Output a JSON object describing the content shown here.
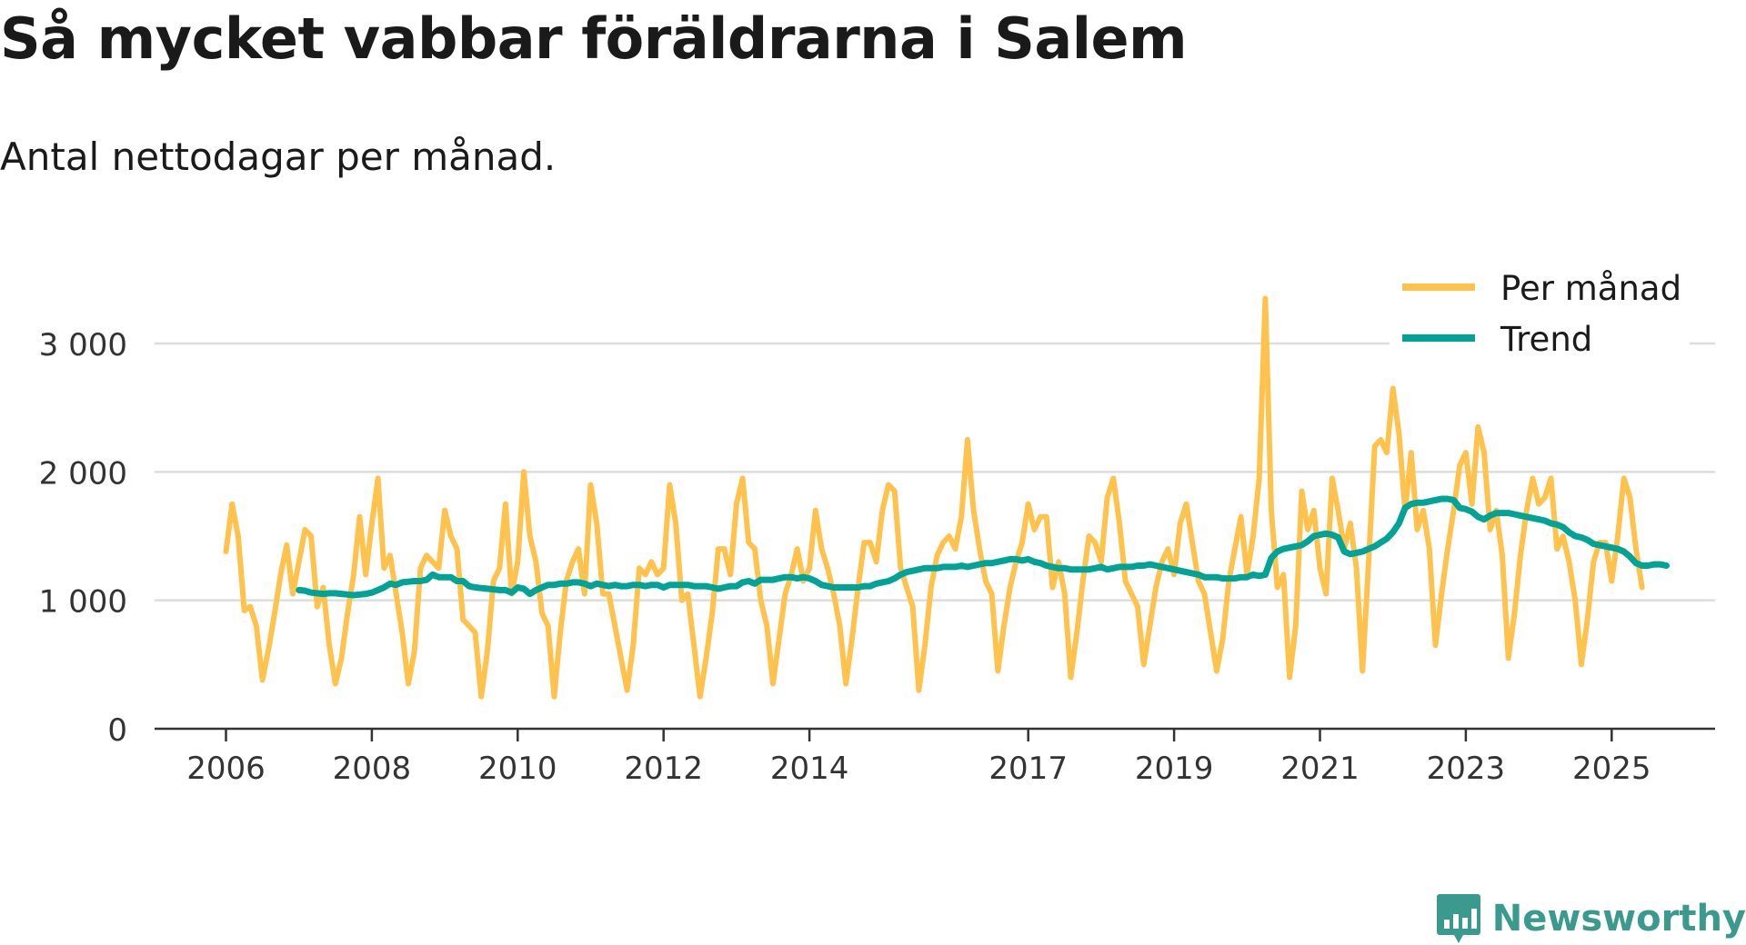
{
  "title": "Så mycket vabbar föräldrarna i Salem",
  "subtitle": "Antal nettodagar per månad.",
  "brand": {
    "name": "Newsworthy",
    "icon": "newsworthy-logo-icon"
  },
  "colors": {
    "monthly": "#FFC34D",
    "trend": "#00A396",
    "grid": "#DDDDDD",
    "axis": "#333333",
    "brand": "#3A9A8E"
  },
  "chart_data": {
    "type": "line",
    "title": "Så mycket vabbar föräldrarna i Salem",
    "subtitle": "Antal nettodagar per månad.",
    "xlabel": "",
    "ylabel": "",
    "ylim": [
      0,
      3000
    ],
    "y_ticks": [
      {
        "value": 0,
        "label": "0"
      },
      {
        "value": 1000,
        "label": "1 000"
      },
      {
        "value": 2000,
        "label": "2 000"
      },
      {
        "value": 3000,
        "label": "3 000"
      }
    ],
    "x_ticks": [
      "2006",
      "2008",
      "2010",
      "2012",
      "2014",
      "2017",
      "2019",
      "2021",
      "2023",
      "2025"
    ],
    "legend": {
      "position": "top-right",
      "items": [
        "Per månad",
        "Trend"
      ]
    },
    "series": [
      {
        "name": "Per månad",
        "color": "#FFC34D",
        "start_year": 2006,
        "values": [
          1380,
          1750,
          1500,
          920,
          950,
          800,
          380,
          620,
          900,
          1200,
          1430,
          1050,
          1300,
          1550,
          1500,
          950,
          1100,
          650,
          350,
          550,
          900,
          1200,
          1650,
          1200,
          1600,
          1950,
          1250,
          1350,
          1050,
          750,
          350,
          600,
          1250,
          1350,
          1300,
          1250,
          1700,
          1500,
          1400,
          850,
          800,
          750,
          250,
          600,
          1150,
          1250,
          1750,
          1050,
          1300,
          2000,
          1500,
          1300,
          900,
          800,
          250,
          750,
          1150,
          1300,
          1400,
          1050,
          1900,
          1600,
          1050,
          1050,
          800,
          550,
          300,
          650,
          1250,
          1200,
          1300,
          1200,
          1250,
          1900,
          1600,
          1000,
          1050,
          650,
          250,
          550,
          900,
          1400,
          1400,
          1200,
          1750,
          1950,
          1450,
          1400,
          1000,
          800,
          350,
          700,
          1050,
          1200,
          1400,
          1150,
          1250,
          1700,
          1400,
          1250,
          1050,
          800,
          350,
          700,
          1100,
          1450,
          1450,
          1300,
          1700,
          1900,
          1850,
          1250,
          1100,
          950,
          300,
          650,
          1100,
          1350,
          1450,
          1500,
          1400,
          1650,
          2250,
          1700,
          1400,
          1150,
          1050,
          450,
          800,
          1100,
          1300,
          1450,
          1750,
          1550,
          1650,
          1650,
          1100,
          1300,
          1050,
          400,
          750,
          1150,
          1500,
          1450,
          1300,
          1800,
          1950,
          1600,
          1150,
          1050,
          950,
          500,
          800,
          1100,
          1300,
          1400,
          1200,
          1600,
          1750,
          1450,
          1150,
          1050,
          750,
          450,
          700,
          1150,
          1400,
          1650,
          1200,
          1500,
          1950,
          3350,
          1700,
          1100,
          1200,
          400,
          800,
          1850,
          1550,
          1700,
          1250,
          1050,
          1950,
          1700,
          1400,
          1600,
          1250,
          450,
          1300,
          2200,
          2250,
          2150,
          2650,
          2300,
          1700,
          2150,
          1550,
          1700,
          1400,
          650,
          1050,
          1400,
          1700,
          2050,
          2150,
          1750,
          2350,
          2150,
          1550,
          1700,
          1350,
          550,
          900,
          1350,
          1700,
          1950,
          1750,
          1800,
          1950,
          1400,
          1500,
          1300,
          1000,
          500,
          850,
          1300,
          1450,
          1450,
          1150,
          1500,
          1950,
          1800,
          1400,
          1100
        ]
      },
      {
        "name": "Trend",
        "color": "#00A396",
        "start_year": 2007,
        "values": [
          1080,
          1075,
          1060,
          1055,
          1050,
          1055,
          1055,
          1050,
          1045,
          1040,
          1045,
          1050,
          1060,
          1080,
          1100,
          1130,
          1120,
          1140,
          1145,
          1150,
          1150,
          1160,
          1200,
          1180,
          1180,
          1180,
          1150,
          1150,
          1110,
          1100,
          1095,
          1090,
          1085,
          1080,
          1080,
          1060,
          1100,
          1090,
          1050,
          1080,
          1100,
          1120,
          1120,
          1130,
          1130,
          1140,
          1140,
          1130,
          1110,
          1130,
          1120,
          1110,
          1120,
          1110,
          1110,
          1120,
          1120,
          1110,
          1120,
          1120,
          1100,
          1120,
          1120,
          1120,
          1120,
          1110,
          1110,
          1110,
          1100,
          1090,
          1100,
          1110,
          1110,
          1140,
          1150,
          1130,
          1160,
          1160,
          1160,
          1170,
          1180,
          1180,
          1170,
          1180,
          1170,
          1150,
          1120,
          1110,
          1100,
          1100,
          1100,
          1100,
          1100,
          1110,
          1110,
          1130,
          1140,
          1150,
          1170,
          1200,
          1220,
          1230,
          1240,
          1250,
          1250,
          1250,
          1260,
          1260,
          1260,
          1270,
          1260,
          1270,
          1280,
          1290,
          1290,
          1300,
          1310,
          1320,
          1320,
          1310,
          1320,
          1300,
          1290,
          1270,
          1260,
          1250,
          1250,
          1240,
          1240,
          1240,
          1240,
          1250,
          1260,
          1240,
          1250,
          1260,
          1260,
          1260,
          1270,
          1270,
          1280,
          1270,
          1260,
          1250,
          1240,
          1230,
          1220,
          1210,
          1200,
          1180,
          1180,
          1180,
          1170,
          1170,
          1170,
          1180,
          1180,
          1200,
          1190,
          1200,
          1330,
          1380,
          1400,
          1410,
          1420,
          1430,
          1460,
          1500,
          1510,
          1520,
          1510,
          1490,
          1380,
          1360,
          1370,
          1380,
          1400,
          1420,
          1450,
          1480,
          1530,
          1600,
          1720,
          1750,
          1760,
          1760,
          1770,
          1780,
          1790,
          1790,
          1780,
          1720,
          1710,
          1690,
          1650,
          1630,
          1660,
          1680,
          1680,
          1680,
          1670,
          1660,
          1650,
          1640,
          1630,
          1620,
          1600,
          1590,
          1570,
          1530,
          1500,
          1490,
          1470,
          1440,
          1430,
          1420,
          1410,
          1400,
          1380,
          1340,
          1290,
          1270,
          1270,
          1280,
          1280,
          1270
        ]
      }
    ]
  }
}
